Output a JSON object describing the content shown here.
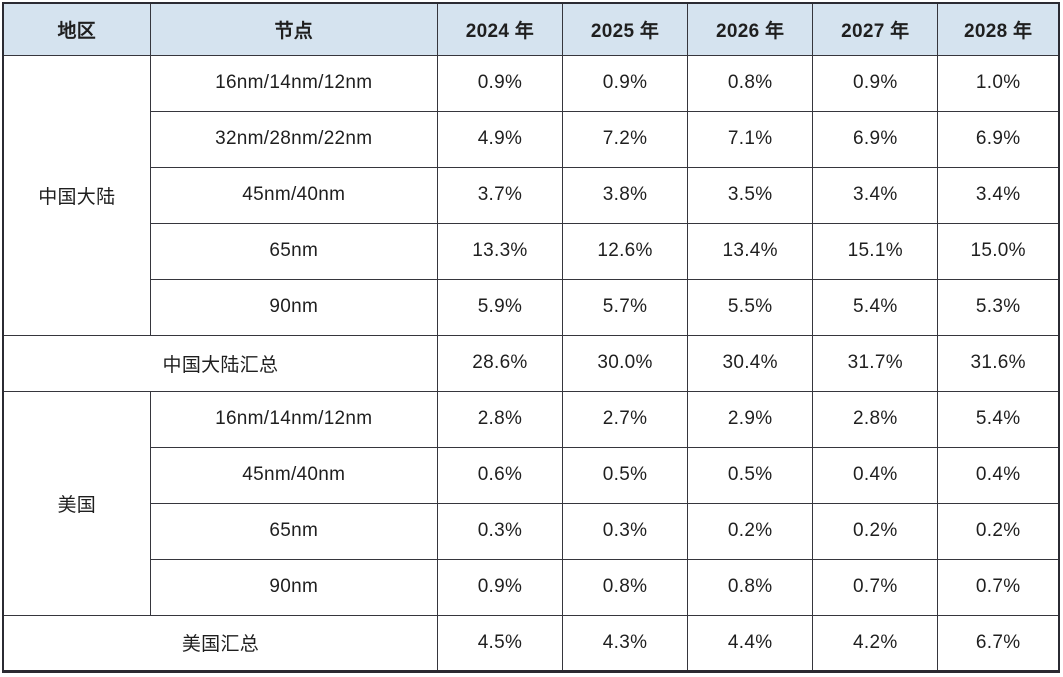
{
  "table": {
    "columns": [
      "地区",
      "节点",
      "2024 年",
      "2025 年",
      "2026 年",
      "2027 年",
      "2028 年"
    ],
    "regions": [
      {
        "name": "中国大陆",
        "rows": [
          {
            "node": "16nm/14nm/12nm",
            "values": [
              "0.9%",
              "0.9%",
              "0.8%",
              "0.9%",
              "1.0%"
            ]
          },
          {
            "node": "32nm/28nm/22nm",
            "values": [
              "4.9%",
              "7.2%",
              "7.1%",
              "6.9%",
              "6.9%"
            ]
          },
          {
            "node": "45nm/40nm",
            "values": [
              "3.7%",
              "3.8%",
              "3.5%",
              "3.4%",
              "3.4%"
            ]
          },
          {
            "node": "65nm",
            "values": [
              "13.3%",
              "12.6%",
              "13.4%",
              "15.1%",
              "15.0%"
            ]
          },
          {
            "node": "90nm",
            "values": [
              "5.9%",
              "5.7%",
              "5.5%",
              "5.4%",
              "5.3%"
            ]
          }
        ],
        "summary": {
          "label": "中国大陆汇总",
          "values": [
            "28.6%",
            "30.0%",
            "30.4%",
            "31.7%",
            "31.6%"
          ]
        }
      },
      {
        "name": "美国",
        "rows": [
          {
            "node": "16nm/14nm/12nm",
            "values": [
              "2.8%",
              "2.7%",
              "2.9%",
              "2.8%",
              "5.4%"
            ]
          },
          {
            "node": "45nm/40nm",
            "values": [
              "0.6%",
              "0.5%",
              "0.5%",
              "0.4%",
              "0.4%"
            ]
          },
          {
            "node": "65nm",
            "values": [
              "0.3%",
              "0.3%",
              "0.2%",
              "0.2%",
              "0.2%"
            ]
          },
          {
            "node": "90nm",
            "values": [
              "0.9%",
              "0.8%",
              "0.8%",
              "0.7%",
              "0.7%"
            ]
          }
        ],
        "summary": {
          "label": "美国汇总",
          "values": [
            "4.5%",
            "4.3%",
            "4.4%",
            "4.2%",
            "6.7%"
          ]
        }
      }
    ],
    "colors": {
      "header_bg": "#d5e3ef",
      "border": "#36363d",
      "outer_border": "#2b2b32",
      "text": "#1f1f1f",
      "cell_bg": "#ffffff"
    }
  },
  "chart_data": {
    "type": "table",
    "title": "",
    "columns": [
      "地区",
      "节点",
      "2024 年",
      "2025 年",
      "2026 年",
      "2027 年",
      "2028 年"
    ],
    "rows": [
      [
        "中国大陆",
        "16nm/14nm/12nm",
        "0.9%",
        "0.9%",
        "0.8%",
        "0.9%",
        "1.0%"
      ],
      [
        "中国大陆",
        "32nm/28nm/22nm",
        "4.9%",
        "7.2%",
        "7.1%",
        "6.9%",
        "6.9%"
      ],
      [
        "中国大陆",
        "45nm/40nm",
        "3.7%",
        "3.8%",
        "3.5%",
        "3.4%",
        "3.4%"
      ],
      [
        "中国大陆",
        "65nm",
        "13.3%",
        "12.6%",
        "13.4%",
        "15.1%",
        "15.0%"
      ],
      [
        "中国大陆",
        "90nm",
        "5.9%",
        "5.7%",
        "5.5%",
        "5.4%",
        "5.3%"
      ],
      [
        "中国大陆汇总",
        "",
        "28.6%",
        "30.0%",
        "30.4%",
        "31.7%",
        "31.6%"
      ],
      [
        "美国",
        "16nm/14nm/12nm",
        "2.8%",
        "2.7%",
        "2.9%",
        "2.8%",
        "5.4%"
      ],
      [
        "美国",
        "45nm/40nm",
        "0.6%",
        "0.5%",
        "0.5%",
        "0.4%",
        "0.4%"
      ],
      [
        "美国",
        "65nm",
        "0.3%",
        "0.3%",
        "0.2%",
        "0.2%",
        "0.2%"
      ],
      [
        "美国",
        "90nm",
        "0.9%",
        "0.8%",
        "0.8%",
        "0.7%",
        "0.7%"
      ],
      [
        "美国汇总",
        "",
        "4.5%",
        "4.3%",
        "4.4%",
        "4.2%",
        "6.7%"
      ]
    ]
  }
}
